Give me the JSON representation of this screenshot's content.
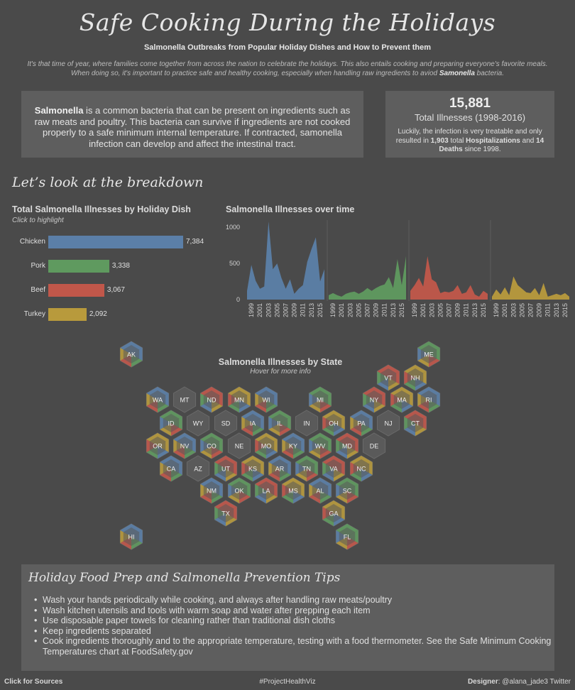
{
  "header": {
    "title": "Safe Cooking During the Holidays",
    "subtitle": "Salmonella Outbreaks from Popular Holiday Dishes and How to Prevent them",
    "intro_line1": "It's that time of year, where families come together from across the nation to celebrate the holidays. This also entails cooking and preparing everyone's favorite meals.",
    "intro_line2_pre": "When doing so, it's important to practice safe and healthy cooking, especially when handling raw ingredients to aviod ",
    "intro_line2_bold": "Samonella",
    "intro_line2_post": " bacteria."
  },
  "definition": {
    "term": "Salmonella",
    "text": " is a common bacteria that can be present on ingredients such as raw meats and poultry. This bacteria can survive if ingredients are not cooked properly to a safe minimum internal temperature. If contracted, samonella infection can develop and affect the intestinal tract."
  },
  "stats": {
    "total": "15,881",
    "total_label": "Total Illnesses (1998-2016)",
    "text_pre": "Luckily, the infection is very treatable and only resulted in ",
    "hosp_count": "1,903",
    "text_mid1": " total ",
    "hosp_label": "Hospitalizations",
    "text_mid2": " and ",
    "deaths": "14 Deaths",
    "text_post": " since 1998."
  },
  "breakdown_heading": "Let’s look at the breakdown",
  "bar_chart": {
    "title": "Total Salmonella Illnesses by Holiday Dish",
    "subtitle": "Click to highlight",
    "rows": [
      {
        "label": "Chicken",
        "value": 7384,
        "display": "7,384",
        "color": "#5b7fa8"
      },
      {
        "label": "Pork",
        "value": 3338,
        "display": "3,338",
        "color": "#5f9a5f"
      },
      {
        "label": "Beef",
        "value": 3067,
        "display": "3,067",
        "color": "#c1574a"
      },
      {
        "label": "Turkey",
        "value": 2092,
        "display": "2,092",
        "color": "#b89a3c"
      }
    ]
  },
  "chart_data": {
    "type": "area",
    "title": "Salmonella Illnesses over time",
    "ylim": [
      0,
      1100
    ],
    "yticks": [
      "0",
      "500",
      "1000"
    ],
    "x_tick_labels": [
      "1999",
      "2001",
      "2003",
      "2005",
      "2007",
      "2009",
      "2011",
      "2013",
      "2015"
    ],
    "years": [
      1998,
      1999,
      2000,
      2001,
      2002,
      2003,
      2004,
      2005,
      2006,
      2007,
      2008,
      2009,
      2010,
      2011,
      2012,
      2013,
      2014,
      2015,
      2016
    ],
    "series": [
      {
        "name": "Chicken",
        "color": "#5b7fa8",
        "values": [
          120,
          480,
          260,
          150,
          180,
          1080,
          420,
          500,
          300,
          150,
          280,
          80,
          150,
          200,
          520,
          700,
          860,
          250,
          420
        ]
      },
      {
        "name": "Pork",
        "color": "#5f9a5f",
        "values": [
          60,
          90,
          60,
          40,
          80,
          100,
          110,
          80,
          110,
          160,
          120,
          160,
          190,
          210,
          310,
          160,
          560,
          200,
          600
        ]
      },
      {
        "name": "Beef",
        "color": "#c1574a",
        "values": [
          120,
          200,
          300,
          180,
          600,
          280,
          240,
          90,
          110,
          100,
          120,
          200,
          80,
          100,
          200,
          70,
          40,
          120,
          80
        ]
      },
      {
        "name": "Turkey",
        "color": "#b89a3c",
        "values": [
          40,
          140,
          70,
          170,
          60,
          320,
          200,
          150,
          100,
          90,
          160,
          60,
          230,
          40,
          60,
          80,
          60,
          90,
          40
        ]
      }
    ]
  },
  "map": {
    "title": "Salmonella Illnesses by State",
    "subtitle": "Hover for more info",
    "states": [
      "AK",
      "ME",
      "VT",
      "NH",
      "WA",
      "MT",
      "ND",
      "MN",
      "WI",
      "MI",
      "NY",
      "MA",
      "RI",
      "ID",
      "WY",
      "SD",
      "IA",
      "IL",
      "IN",
      "OH",
      "PA",
      "NJ",
      "CT",
      "OR",
      "NV",
      "CO",
      "NE",
      "MO",
      "KY",
      "WV",
      "MD",
      "DE",
      "CA",
      "AZ",
      "UT",
      "KS",
      "AR",
      "TN",
      "VA",
      "NC",
      "NM",
      "OK",
      "LA",
      "MS",
      "AL",
      "SC",
      "TX",
      "GA",
      "HI",
      "FL"
    ]
  },
  "tips": {
    "heading": "Holiday Food Prep and Salmonella Prevention Tips",
    "items": [
      "Wash your hands periodically while cooking, and always after handling raw meats/poultry",
      "Wash kitchen utensils and tools with warm soap and water after prepping each item",
      "Use disposable paper towels for cleaning rather than traditional dish cloths",
      "Keep ingredients separated",
      "Cook ingredients thoroughly and to the appropriate temperature, testing with a food thermometer. See the Safe Minimum Cooking Temperatures chart at FoodSafety.gov"
    ]
  },
  "footer": {
    "sources": "Click for Sources",
    "hashtag": "#ProjectHealthViz",
    "designer_label": "Designer",
    "designer_value": ": @alana_jade3 Twitter"
  }
}
